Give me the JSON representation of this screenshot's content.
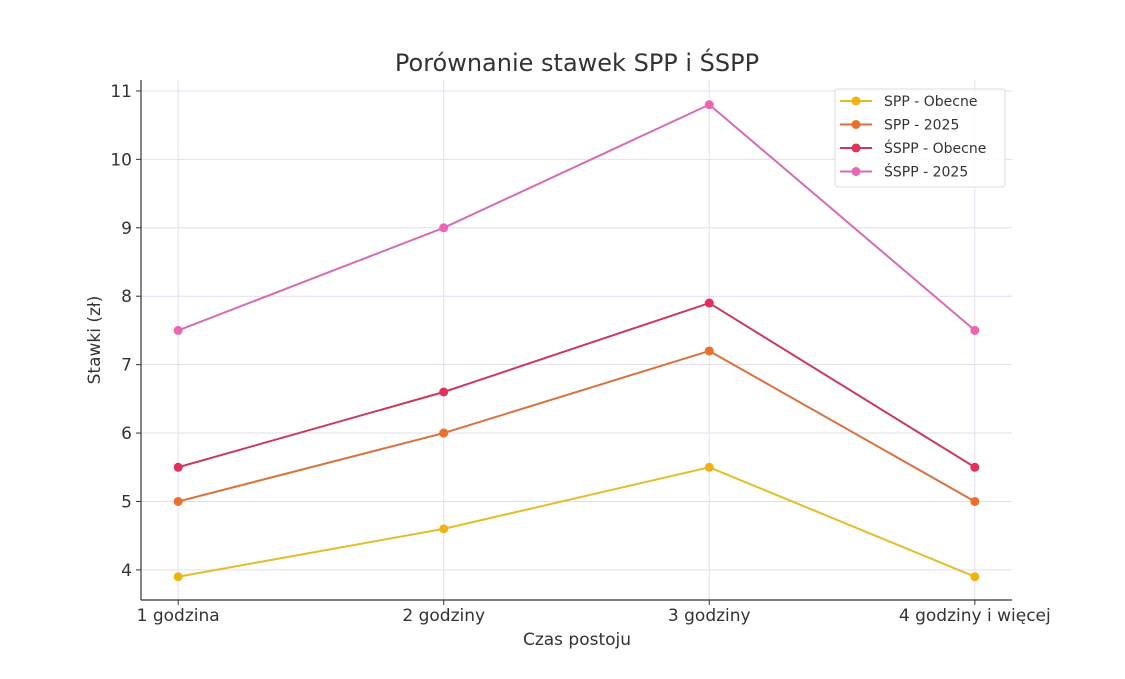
{
  "chart_data": {
    "type": "line",
    "title": "Porównanie stawek SPP i ŚSPP",
    "xlabel": "Czas postoju",
    "ylabel": "Stawki (zł)",
    "categories": [
      "1 godzina",
      "2 godziny",
      "3 godziny",
      "4 godziny i więcej"
    ],
    "ylim": [
      3.56,
      11.16
    ],
    "yticks": [
      4,
      5,
      6,
      7,
      8,
      9,
      10,
      11
    ],
    "grid": true,
    "legend_position": "top-right",
    "series": [
      {
        "name": "SPP - Obecne",
        "values": [
          3.9,
          4.6,
          5.5,
          3.9
        ],
        "line_color": "#e3bd2a",
        "marker_color": "#eeb311"
      },
      {
        "name": "SPP - 2025",
        "values": [
          5.0,
          6.0,
          7.2,
          5.0
        ],
        "line_color": "#d8733f",
        "marker_color": "#e8702c"
      },
      {
        "name": "ŚSPP - Obecne",
        "values": [
          5.5,
          6.6,
          7.9,
          5.5
        ],
        "line_color": "#c93b5e",
        "marker_color": "#e1305c"
      },
      {
        "name": "ŚSPP - 2025",
        "values": [
          7.5,
          9.0,
          10.8,
          7.5
        ],
        "line_color": "#d46db4",
        "marker_color": "#ea66b3"
      }
    ]
  }
}
